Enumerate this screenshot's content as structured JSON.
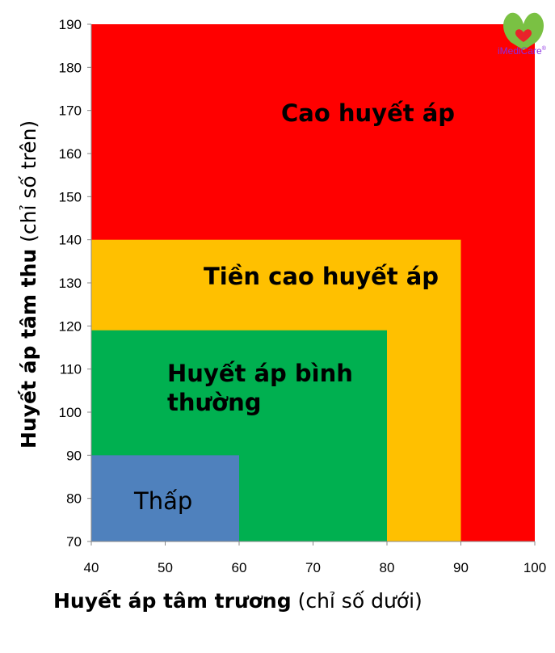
{
  "chart_data": {
    "type": "area",
    "xlim": [
      40,
      100
    ],
    "ylim": [
      70,
      190
    ],
    "x_ticks": [
      40,
      50,
      60,
      70,
      80,
      90,
      100
    ],
    "y_ticks": [
      70,
      80,
      90,
      100,
      110,
      120,
      130,
      140,
      150,
      160,
      170,
      180,
      190
    ],
    "xlabel": {
      "bold": "Huyết áp tâm trương",
      "normal": " (chỉ số dưới)"
    },
    "ylabel": {
      "bold": "Huyết áp tâm thu",
      "normal": " (chỉ số trên)"
    },
    "grid": false,
    "regions": [
      {
        "name": "Cao huyết áp",
        "lines": [
          "Cao huyết áp"
        ],
        "x_max": 100,
        "y_max": 190,
        "color": "#ff0000",
        "bold": true
      },
      {
        "name": "Tiền cao huyết áp",
        "lines": [
          "Tiền cao huyết áp"
        ],
        "x_max": 90,
        "y_max": 140,
        "color": "#ffc000",
        "bold": true
      },
      {
        "name": "Huyết áp bình thường",
        "lines": [
          "Huyết áp bình",
          "thường"
        ],
        "x_max": 80,
        "y_max": 119,
        "color": "#00b050",
        "bold": true
      },
      {
        "name": "Thấp",
        "lines": [
          "Thấp"
        ],
        "x_max": 60,
        "y_max": 90,
        "color": "#4f81bd",
        "bold": false
      }
    ]
  },
  "logo": {
    "text": "iMediCare",
    "mark": "®",
    "heart_color": "#e8232a",
    "leaf_color": "#7ac143"
  }
}
